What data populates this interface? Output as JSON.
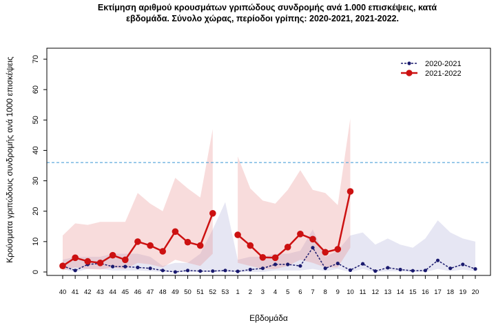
{
  "chart_data": {
    "type": "line",
    "title_line1": "Εκτίμηση αριθμού κρουσμάτων γριπώδους συνδρομής ανά 1.000 επισκέψεις, κατά",
    "title_line2": "εβδομάδα. Σύνολο χώρας, περίοδοι γρίπης:  2020-2021, 2021-2022.",
    "xlabel": "Εβδομάδα",
    "ylabel": "Κρούσματα γριπώδους συνδρομής ανά 1000 επισκέψεις",
    "ylim": [
      0,
      70
    ],
    "yticks": [
      0,
      10,
      20,
      30,
      40,
      50,
      60,
      70
    ],
    "threshold": 36,
    "categories": [
      "40",
      "41",
      "42",
      "43",
      "44",
      "45",
      "46",
      "47",
      "48",
      "49",
      "50",
      "51",
      "52",
      "53",
      "1",
      "2",
      "3",
      "4",
      "5",
      "6",
      "7",
      "8",
      "9",
      "10",
      "11",
      "12",
      "13",
      "14",
      "15",
      "16",
      "17",
      "18",
      "19",
      "20"
    ],
    "series": [
      {
        "name": "2020-2021",
        "color": "#1a1a6e",
        "style": "dashed",
        "values": [
          2.0,
          0.5,
          2.5,
          2.8,
          1.8,
          1.8,
          1.5,
          1.2,
          0.5,
          0.0,
          0.5,
          0.3,
          0.3,
          0.5,
          0.2,
          0.8,
          1.2,
          2.5,
          2.5,
          2.0,
          8.0,
          1.2,
          2.8,
          0.6,
          2.7,
          0.3,
          1.4,
          0.8,
          0.4,
          0.5,
          3.8,
          1.2,
          2.5,
          1.0
        ],
        "band_low": [
          1.0,
          0.0,
          1.0,
          1.0,
          0.5,
          0.5,
          0.5,
          0.3,
          0.0,
          0.0,
          0.0,
          0.0,
          0.0,
          0.0,
          0.0,
          0.0,
          0.0,
          0.5,
          0.5,
          0.5,
          1.0,
          0.3,
          1.0,
          0.0,
          1.0,
          0.0,
          0.3,
          0.2,
          0.0,
          0.0,
          1.0,
          0.3,
          0.8,
          0.3
        ],
        "band_high": [
          4.0,
          5.0,
          5.0,
          5.0,
          6.0,
          6.0,
          6.0,
          5.0,
          2.0,
          3.0,
          3.0,
          6.0,
          14.0,
          23.0,
          4.0,
          5.0,
          5.0,
          6.0,
          6.0,
          7.0,
          14.0,
          5.0,
          7.0,
          12.0,
          13.0,
          9.0,
          11.0,
          9.0,
          8.0,
          11.0,
          17.0,
          13.0,
          11.0,
          10.0
        ]
      },
      {
        "name": "2021-2022",
        "color": "#cc1111",
        "style": "solid",
        "values": [
          2.0,
          4.7,
          3.5,
          3.0,
          5.5,
          4.0,
          10.0,
          8.7,
          6.8,
          13.3,
          9.8,
          8.7,
          19.3,
          null,
          12.2,
          8.7,
          4.8,
          4.7,
          8.2,
          12.5,
          10.8,
          6.5,
          7.5,
          26.5,
          null,
          null,
          null,
          null,
          null,
          null,
          null,
          null,
          null,
          null
        ],
        "band_low": [
          0.5,
          1.5,
          1.0,
          0.8,
          1.5,
          1.0,
          3.0,
          2.5,
          1.5,
          4.0,
          3.0,
          2.0,
          6.0,
          null,
          3.0,
          2.0,
          1.0,
          1.0,
          2.0,
          4.0,
          3.0,
          1.5,
          1.5,
          8.0,
          null,
          null,
          null,
          null,
          null,
          null,
          null,
          null,
          null,
          null
        ],
        "band_high": [
          12.0,
          16.0,
          15.5,
          16.5,
          16.5,
          16.5,
          26.0,
          22.5,
          20.0,
          31.0,
          27.5,
          24.5,
          47.0,
          null,
          38.0,
          27.5,
          23.5,
          22.5,
          27.0,
          33.5,
          27.0,
          26.0,
          22.0,
          50.5,
          null,
          null,
          null,
          null,
          null,
          null,
          null,
          null,
          null,
          null
        ]
      }
    ],
    "legend": [
      "2020-2021",
      "2021-2022"
    ],
    "legend_position": "top-right"
  }
}
